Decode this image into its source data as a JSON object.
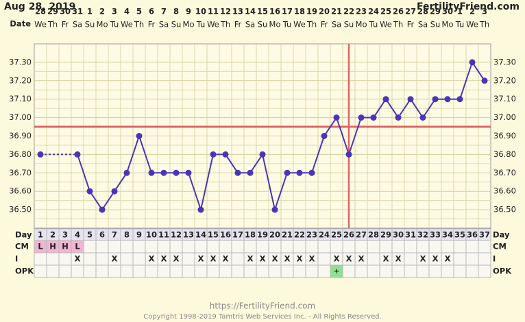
{
  "header": {
    "date": "Aug 28, 2019",
    "site": "FertilityFriend.com",
    "date_label": "Date"
  },
  "chart_data": {
    "type": "line",
    "dates": [
      28,
      29,
      30,
      31,
      1,
      2,
      3,
      4,
      5,
      6,
      7,
      8,
      9,
      10,
      11,
      12,
      13,
      14,
      15,
      16,
      17,
      18,
      19,
      20,
      21,
      22,
      23,
      24,
      25,
      26,
      27,
      28,
      29,
      30,
      1,
      2,
      3
    ],
    "weekdays": [
      "We",
      "Th",
      "Fr",
      "Sa",
      "Su",
      "Mo",
      "Tu",
      "We",
      "Th",
      "Fr",
      "Sa",
      "Su",
      "Mo",
      "Tu",
      "We",
      "Th",
      "Fr",
      "Sa",
      "Su",
      "Mo",
      "Tu",
      "We",
      "Th",
      "Fr",
      "Sa",
      "Su",
      "Mo",
      "Tu",
      "We",
      "Th",
      "Fr",
      "Sa",
      "Su",
      "Mo",
      "Tu",
      "We",
      "Th"
    ],
    "categories": [
      1,
      2,
      3,
      4,
      5,
      6,
      7,
      8,
      9,
      10,
      11,
      12,
      13,
      14,
      15,
      16,
      17,
      18,
      19,
      20,
      21,
      22,
      23,
      24,
      25,
      26,
      27,
      28,
      29,
      30,
      31,
      32,
      33,
      34,
      35,
      36,
      37
    ],
    "series": [
      {
        "name": "Temperature",
        "color": "#4a35b8",
        "values": [
          36.8,
          null,
          null,
          36.8,
          36.6,
          36.5,
          36.6,
          36.7,
          36.9,
          36.7,
          36.7,
          36.7,
          36.7,
          36.5,
          36.8,
          36.8,
          36.7,
          36.7,
          36.8,
          36.5,
          36.7,
          36.7,
          36.7,
          36.9,
          37.0,
          36.8,
          37.0,
          37.0,
          37.1,
          37.0,
          37.1,
          37.0,
          37.1,
          37.1,
          37.1,
          37.3,
          37.2
        ]
      }
    ],
    "ylim": [
      36.4,
      37.4
    ],
    "yticks": [
      {
        "value": 36.5,
        "label": "36.50"
      },
      {
        "value": 36.6,
        "label": "36.60"
      },
      {
        "value": 36.7,
        "label": "36.70"
      },
      {
        "value": 36.8,
        "label": "36.80"
      },
      {
        "value": 36.9,
        "label": "36.90"
      },
      {
        "value": 37.0,
        "label": "37.00"
      },
      {
        "value": 37.1,
        "label": "37.10"
      },
      {
        "value": 37.2,
        "label": "37.20"
      },
      {
        "value": 37.3,
        "label": "37.30"
      }
    ],
    "coverline": 36.95,
    "ovulation_day": 26,
    "line_color": "#e06666",
    "rows": [
      {
        "label": "Day"
      },
      {
        "label": "CM",
        "color": "#f0b6d0",
        "cells": [
          "L",
          "H",
          "H",
          "L",
          null,
          null,
          null,
          null,
          null,
          null,
          null,
          null,
          null,
          null,
          null,
          null,
          null,
          null,
          null,
          null,
          null,
          null,
          null,
          null,
          null,
          null,
          null,
          null,
          null,
          null,
          null,
          null,
          null,
          null,
          null,
          null,
          null
        ]
      },
      {
        "label": "I",
        "cells": [
          null,
          null,
          null,
          "X",
          null,
          null,
          "X",
          null,
          null,
          "X",
          "X",
          "X",
          null,
          "X",
          "X",
          "X",
          null,
          "X",
          "X",
          "X",
          "X",
          "X",
          "X",
          null,
          "X",
          "X",
          "X",
          null,
          "X",
          "X",
          null,
          "X",
          "X",
          "X",
          null,
          null,
          null
        ]
      },
      {
        "label": "OPK",
        "color": "#90e090",
        "cells": [
          null,
          null,
          null,
          null,
          null,
          null,
          null,
          null,
          null,
          null,
          null,
          null,
          null,
          null,
          null,
          null,
          null,
          null,
          null,
          null,
          null,
          null,
          null,
          null,
          "+",
          null,
          null,
          null,
          null,
          null,
          null,
          null,
          null,
          null,
          null,
          null,
          null
        ]
      }
    ]
  },
  "footer": {
    "url": "https://FertilityFriend.com",
    "copyright": "Copyright 1998-2019 Tamtris Web Services Inc. - All Rights Reserved."
  }
}
